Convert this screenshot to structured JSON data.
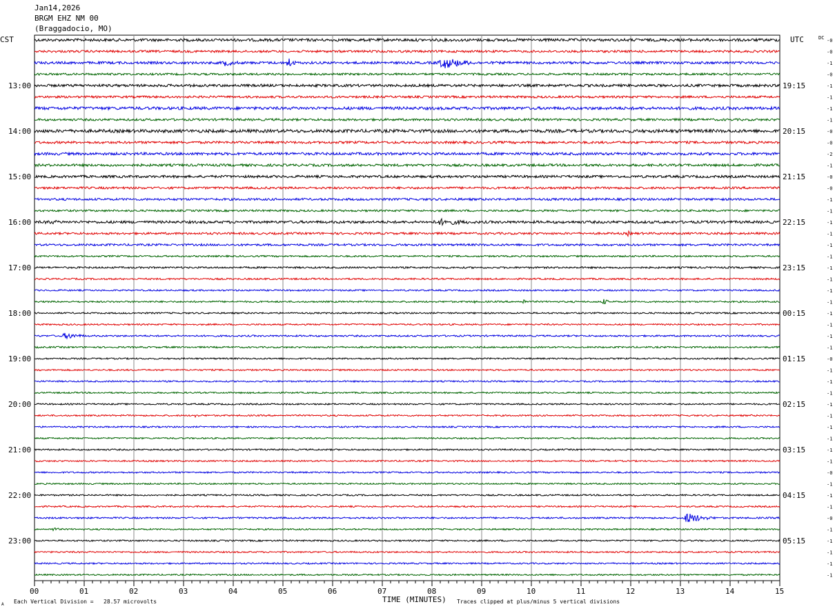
{
  "header": {
    "date": "Jan14,2026",
    "station": "BRGM EHZ NM 00",
    "location": "(Braggadocio, MO)"
  },
  "footer": {
    "scale_note": "Each Vertical Division =   28.57 microvolts",
    "clip_note": "Traces clipped at plus/minus 5 vertical divisions",
    "mark": "A"
  },
  "chart_data": {
    "type": "line",
    "title": "",
    "xlabel": "TIME (MINUTES)",
    "left_axis_label": "CST",
    "right_axis_label": "UTC",
    "dc_label": "DC",
    "xlim": [
      0,
      15
    ],
    "x_ticks": [
      "00",
      "01",
      "02",
      "03",
      "04",
      "05",
      "06",
      "07",
      "08",
      "09",
      "10",
      "11",
      "12",
      "13",
      "14",
      "15"
    ],
    "grid": true,
    "trace_colors": [
      "#000000",
      "#e00000",
      "#0000e0",
      "#006400"
    ],
    "trace_minutes": 15,
    "row_count": 48,
    "cst_labels": [
      "13:00",
      "14:00",
      "15:00",
      "16:00",
      "17:00",
      "18:00",
      "19:00",
      "20:00",
      "21:00",
      "22:00",
      "23:00"
    ],
    "utc_labels": [
      "19:15",
      "20:15",
      "21:15",
      "22:15",
      "23:15",
      "00:15",
      "01:15",
      "02:15",
      "03:15",
      "04:15",
      "05:15"
    ],
    "hour_label_start_row": 4,
    "dc_offsets": [
      "-0",
      "-0",
      "-1",
      "-0",
      "-1",
      "-1",
      "-1",
      "-1",
      "-0",
      "-0",
      "-2",
      "-1",
      "-0",
      "-0",
      "-1",
      "-1",
      "-1",
      "-1",
      "-1",
      "-1",
      "-1",
      "-1",
      "-1",
      "-1",
      "-1",
      "-1",
      "-1",
      "-1",
      "-0",
      "-1",
      "-1",
      "-1",
      "-1",
      "-1",
      "-1",
      "-1",
      "-1",
      "-1",
      "-0",
      "-1",
      "-1",
      "-1",
      "-0",
      "-1",
      "-1",
      "-1",
      "-1",
      "-1"
    ],
    "noise_levels": [
      2.0,
      1.6,
      1.8,
      1.5,
      1.9,
      1.6,
      2.1,
      1.6,
      2.3,
      1.7,
      1.9,
      1.8,
      1.8,
      1.6,
      1.6,
      1.4,
      1.9,
      1.5,
      1.5,
      1.2,
      1.3,
      1.2,
      1.1,
      1.2,
      1.1,
      1.1,
      1.2,
      1.2,
      1.1,
      1.1,
      1.1,
      1.1,
      1.1,
      1.1,
      1.1,
      1.1,
      1.1,
      1.1,
      1.1,
      1.1,
      1.1,
      1.1,
      1.2,
      1.1,
      1.1,
      1.1,
      1.1,
      1.1
    ],
    "events": [
      {
        "row": 2,
        "minute": 3.7,
        "duration_min": 0.9,
        "amplitude": 5
      },
      {
        "row": 2,
        "minute": 5.05,
        "duration_min": 0.35,
        "amplitude": 9
      },
      {
        "row": 2,
        "minute": 8.05,
        "duration_min": 1.3,
        "amplitude": 9
      },
      {
        "row": 16,
        "minute": 0.0,
        "duration_min": 2.0,
        "amplitude": 3
      },
      {
        "row": 16,
        "minute": 7.9,
        "duration_min": 2.0,
        "amplitude": 5
      },
      {
        "row": 17,
        "minute": 11.9,
        "duration_min": 0.3,
        "amplitude": 4
      },
      {
        "row": 23,
        "minute": 8.8,
        "duration_min": 0.15,
        "amplitude": 4
      },
      {
        "row": 23,
        "minute": 9.8,
        "duration_min": 0.2,
        "amplitude": 5
      },
      {
        "row": 23,
        "minute": 11.4,
        "duration_min": 0.3,
        "amplitude": 5
      },
      {
        "row": 26,
        "minute": 0.5,
        "duration_min": 0.9,
        "amplitude": 5
      },
      {
        "row": 33,
        "minute": 3.2,
        "duration_min": 0.2,
        "amplitude": 4
      },
      {
        "row": 42,
        "minute": 13.0,
        "duration_min": 1.0,
        "amplitude": 8
      },
      {
        "row": 43,
        "minute": 0.3,
        "duration_min": 0.5,
        "amplitude": 3
      }
    ]
  }
}
